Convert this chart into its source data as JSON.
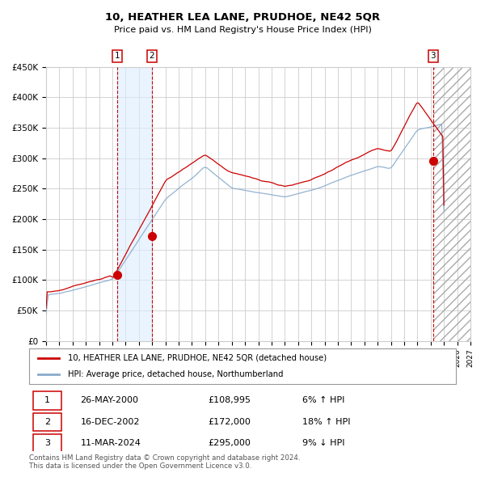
{
  "title": "10, HEATHER LEA LANE, PRUDHOE, NE42 5QR",
  "subtitle": "Price paid vs. HM Land Registry's House Price Index (HPI)",
  "ylim": [
    0,
    450000
  ],
  "yticks": [
    0,
    50000,
    100000,
    150000,
    200000,
    250000,
    300000,
    350000,
    400000,
    450000
  ],
  "ytick_labels": [
    "£0",
    "£50K",
    "£100K",
    "£150K",
    "£200K",
    "£250K",
    "£300K",
    "£350K",
    "£400K",
    "£450K"
  ],
  "sale_color": "#cc0000",
  "hpi_line_color": "#88aacc",
  "marker_color": "#cc0000",
  "vline_color": "#cc0000",
  "shade_color": "#ddeeff",
  "transactions": [
    {
      "label": "1",
      "date_val": 2000.38,
      "price": 108995,
      "date_str": "26-MAY-2000",
      "pct_str": "6% ↑ HPI"
    },
    {
      "label": "2",
      "date_val": 2002.96,
      "price": 172000,
      "date_str": "16-DEC-2002",
      "pct_str": "18% ↑ HPI"
    },
    {
      "label": "3",
      "date_val": 2024.19,
      "price": 295000,
      "date_str": "11-MAR-2024",
      "pct_str": "9% ↓ HPI"
    }
  ],
  "legend_line1": "10, HEATHER LEA LANE, PRUDHOE, NE42 5QR (detached house)",
  "legend_line2": "HPI: Average price, detached house, Northumberland",
  "table_rows": [
    [
      "1",
      "26-MAY-2000",
      "£108,995",
      "6% ↑ HPI"
    ],
    [
      "2",
      "16-DEC-2002",
      "£172,000",
      "18% ↑ HPI"
    ],
    [
      "3",
      "11-MAR-2024",
      "£295,000",
      "9% ↓ HPI"
    ]
  ],
  "footer_text": "Contains HM Land Registry data © Crown copyright and database right 2024.\nThis data is licensed under the Open Government Licence v3.0."
}
